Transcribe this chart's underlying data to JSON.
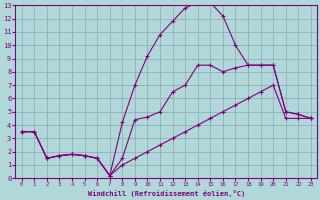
{
  "title": "",
  "xlabel": "Windchill (Refroidissement éolien,°C)",
  "ylabel": "",
  "bg_color": "#b0d8d8",
  "line_color": "#800080",
  "grid_color": "#8899aa",
  "xlim": [
    -0.5,
    23.5
  ],
  "ylim": [
    0,
    13
  ],
  "xticks": [
    0,
    1,
    2,
    3,
    4,
    5,
    6,
    7,
    8,
    9,
    10,
    11,
    12,
    13,
    14,
    15,
    16,
    17,
    18,
    19,
    20,
    21,
    22,
    23
  ],
  "yticks": [
    0,
    1,
    2,
    3,
    4,
    5,
    6,
    7,
    8,
    9,
    10,
    11,
    12,
    13
  ],
  "line1_x": [
    0,
    1,
    2,
    3,
    4,
    5,
    6,
    7,
    8,
    9,
    10,
    11,
    12,
    13,
    14,
    15,
    16,
    17,
    18,
    19,
    20,
    21,
    22,
    23
  ],
  "line1_y": [
    3.5,
    3.5,
    1.5,
    1.7,
    1.8,
    1.7,
    1.5,
    0.2,
    4.2,
    7.0,
    9.2,
    10.8,
    11.8,
    12.8,
    13.2,
    13.2,
    12.2,
    10.0,
    8.5,
    8.5,
    8.5,
    5.0,
    4.8,
    4.5
  ],
  "line2_x": [
    0,
    1,
    2,
    3,
    4,
    5,
    6,
    7,
    8,
    9,
    10,
    11,
    12,
    13,
    14,
    15,
    16,
    17,
    18,
    19,
    20,
    21,
    22,
    23
  ],
  "line2_y": [
    3.5,
    3.5,
    1.5,
    1.7,
    1.8,
    1.7,
    1.5,
    0.2,
    1.5,
    4.4,
    4.6,
    5.0,
    6.5,
    7.0,
    8.5,
    8.5,
    8.0,
    8.3,
    8.5,
    8.5,
    8.5,
    5.0,
    4.8,
    4.5
  ],
  "line3_x": [
    0,
    1,
    2,
    3,
    4,
    5,
    6,
    7,
    8,
    9,
    10,
    11,
    12,
    13,
    14,
    15,
    16,
    17,
    18,
    19,
    20,
    21,
    22,
    23
  ],
  "line3_y": [
    3.5,
    3.5,
    1.5,
    1.7,
    1.8,
    1.7,
    1.5,
    0.2,
    1.0,
    1.5,
    2.0,
    2.5,
    3.0,
    3.5,
    4.0,
    4.5,
    5.0,
    5.5,
    6.0,
    6.5,
    7.0,
    4.5,
    4.5,
    4.5
  ]
}
